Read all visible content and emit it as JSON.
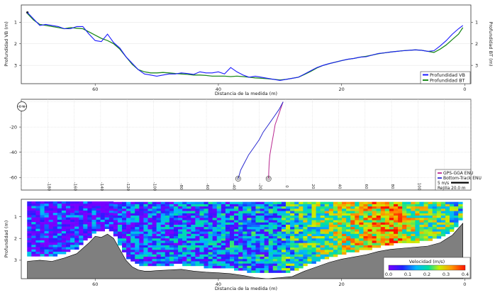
{
  "colors": {
    "vb": "#1a1aff",
    "bt": "#1e8a1e",
    "gps": "#b8258f",
    "btrack": "#2a2ad0",
    "bed": "#7f7f7f"
  },
  "panel1": {
    "xlabel": "Distancia de la medida (m)",
    "ylabel_left": "Profundidad VB (m)",
    "ylabel_right": "Profundidad BT (m)",
    "x_ticks": [
      "60",
      "40",
      "20",
      "0"
    ],
    "y_ticks": [
      "1",
      "2",
      "3"
    ],
    "legend": [
      "Profundidad VB",
      "Profundidad BT"
    ]
  },
  "panel2": {
    "compass_label": "E N",
    "y_ticks": [
      "-20",
      "-40",
      "-60"
    ],
    "x_ticks": [
      "-180",
      "-160",
      "-140",
      "-120",
      "-100",
      "-80",
      "-60",
      "-40",
      "-20",
      "0",
      "20",
      "40",
      "60",
      "80",
      "100",
      "120"
    ],
    "legend": [
      "GPS-GGA ENU",
      "Bottom-Track ENU"
    ],
    "scale_label": "5 m/s",
    "grid_label": "Rejilla 20.0 m"
  },
  "panel3": {
    "xlabel": "Distancia de la medida (m)",
    "ylabel": "Profundidad (m)",
    "x_ticks": [
      "60",
      "40",
      "20",
      "0"
    ],
    "y_ticks": [
      "1",
      "2",
      "3"
    ],
    "colorbar_title": "Velocidad (m/s)",
    "colorbar_ticks": [
      "0.0",
      "0.1",
      "0.2",
      "0.3",
      "0.4"
    ]
  },
  "chart_data": [
    {
      "type": "line",
      "title": "",
      "xlabel": "Distancia de la medida (m)",
      "ylabel": "Profundidad VB (m)",
      "xlim": [
        72,
        -1
      ],
      "ylim": [
        3.85,
        0.2
      ],
      "series": [
        {
          "name": "Profundidad VB",
          "x": [
            71,
            70,
            69,
            68,
            67,
            66,
            65,
            64,
            63,
            62,
            61,
            60,
            59,
            58,
            57,
            56,
            55,
            54,
            53,
            52,
            51,
            50,
            49,
            48,
            47,
            46,
            45,
            44,
            43,
            42,
            41,
            40,
            39,
            38,
            37,
            36,
            35,
            34,
            33,
            32,
            31,
            30,
            29,
            28,
            27,
            26,
            25,
            24,
            23,
            22,
            21,
            20,
            19,
            18,
            17,
            16,
            15,
            14,
            13,
            12,
            11,
            10,
            9,
            8,
            7,
            6,
            5,
            4,
            3,
            2,
            1,
            0.3
          ],
          "y": [
            0.55,
            0.85,
            1.15,
            1.1,
            1.15,
            1.2,
            1.3,
            1.3,
            1.2,
            1.2,
            1.55,
            1.85,
            1.9,
            1.55,
            1.95,
            2.2,
            2.6,
            2.9,
            3.2,
            3.4,
            3.45,
            3.5,
            3.45,
            3.4,
            3.4,
            3.35,
            3.38,
            3.42,
            3.3,
            3.35,
            3.35,
            3.3,
            3.4,
            3.1,
            3.3,
            3.45,
            3.55,
            3.5,
            3.55,
            3.6,
            3.65,
            3.7,
            3.65,
            3.6,
            3.55,
            3.4,
            3.25,
            3.1,
            3.0,
            2.92,
            2.85,
            2.78,
            2.72,
            2.68,
            2.62,
            2.6,
            2.52,
            2.45,
            2.42,
            2.38,
            2.35,
            2.32,
            2.3,
            2.28,
            2.3,
            2.35,
            2.32,
            2.1,
            1.85,
            1.55,
            1.3,
            1.15
          ]
        },
        {
          "name": "Profundidad BT",
          "x": [
            71,
            70,
            69,
            68,
            67,
            66,
            65,
            64,
            63,
            62,
            61,
            60,
            59,
            58,
            57,
            56,
            55,
            54,
            53,
            52,
            51,
            50,
            49,
            48,
            47,
            46,
            45,
            44,
            43,
            42,
            41,
            40,
            39,
            38,
            37,
            36,
            35,
            34,
            33,
            32,
            31,
            30,
            29,
            28,
            27,
            26,
            25,
            24,
            23,
            22,
            21,
            20,
            19,
            18,
            17,
            16,
            15,
            14,
            13,
            12,
            11,
            10,
            9,
            8,
            7,
            6,
            5,
            4,
            3,
            2,
            1,
            0.3
          ],
          "y": [
            0.6,
            0.9,
            1.1,
            1.15,
            1.2,
            1.25,
            1.3,
            1.25,
            1.28,
            1.3,
            1.45,
            1.6,
            1.75,
            1.85,
            2.0,
            2.25,
            2.6,
            2.95,
            3.2,
            3.3,
            3.35,
            3.35,
            3.33,
            3.35,
            3.38,
            3.4,
            3.42,
            3.45,
            3.45,
            3.47,
            3.5,
            3.5,
            3.5,
            3.52,
            3.5,
            3.52,
            3.55,
            3.58,
            3.6,
            3.62,
            3.65,
            3.68,
            3.65,
            3.6,
            3.55,
            3.42,
            3.28,
            3.12,
            3.0,
            2.92,
            2.85,
            2.78,
            2.72,
            2.68,
            2.62,
            2.58,
            2.52,
            2.46,
            2.42,
            2.38,
            2.35,
            2.32,
            2.3,
            2.28,
            2.3,
            2.35,
            2.4,
            2.25,
            2.05,
            1.8,
            1.55,
            1.25
          ]
        }
      ]
    },
    {
      "type": "line",
      "title": "",
      "xlim": [
        -200,
        140
      ],
      "ylim": [
        -70,
        2
      ],
      "series": [
        {
          "name": "GPS-GGA ENU",
          "x": [
            -2,
            -4,
            -6,
            -8,
            -9,
            -10,
            -11,
            -12,
            -12.5,
            -12.8,
            -13
          ],
          "y": [
            0,
            -6,
            -12,
            -18,
            -24,
            -30,
            -36,
            -42,
            -48,
            -54,
            -61
          ]
        },
        {
          "name": "Bottom-Track ENU",
          "x": [
            -2,
            -5,
            -9,
            -13,
            -17,
            -20,
            -24,
            -28,
            -31,
            -34,
            -36
          ],
          "y": [
            0,
            -6,
            -12,
            -18,
            -24,
            -30,
            -36,
            -42,
            -48,
            -54,
            -61
          ]
        }
      ]
    },
    {
      "type": "heatmap",
      "title": "",
      "xlabel": "Distancia de la medida (m)",
      "ylabel": "Profundidad (m)",
      "xlim": [
        72,
        -1
      ],
      "ylim": [
        3.85,
        0.2
      ],
      "z_label": "Velocidad (m/s)",
      "zlim": [
        0.0,
        0.4
      ],
      "bed_profile_x": [
        71,
        69,
        67,
        65,
        63,
        61,
        60,
        59,
        58,
        57,
        56,
        55,
        54,
        53,
        52,
        51,
        50,
        48,
        46,
        44,
        42,
        40,
        38,
        36,
        34,
        32,
        30,
        28,
        26,
        24,
        22,
        20,
        18,
        16,
        14,
        12,
        10,
        8,
        6,
        4,
        2,
        0.3
      ],
      "bed_profile_y": [
        3.05,
        3.0,
        3.05,
        2.9,
        2.7,
        2.2,
        1.9,
        1.95,
        1.8,
        2.0,
        2.5,
        3.0,
        3.3,
        3.45,
        3.5,
        3.5,
        3.48,
        3.45,
        3.42,
        3.5,
        3.55,
        3.58,
        3.62,
        3.7,
        3.8,
        3.85,
        3.8,
        3.75,
        3.5,
        3.3,
        3.1,
        2.95,
        2.85,
        2.75,
        2.6,
        2.5,
        2.45,
        2.4,
        2.35,
        2.2,
        1.85,
        1.3
      ]
    }
  ]
}
